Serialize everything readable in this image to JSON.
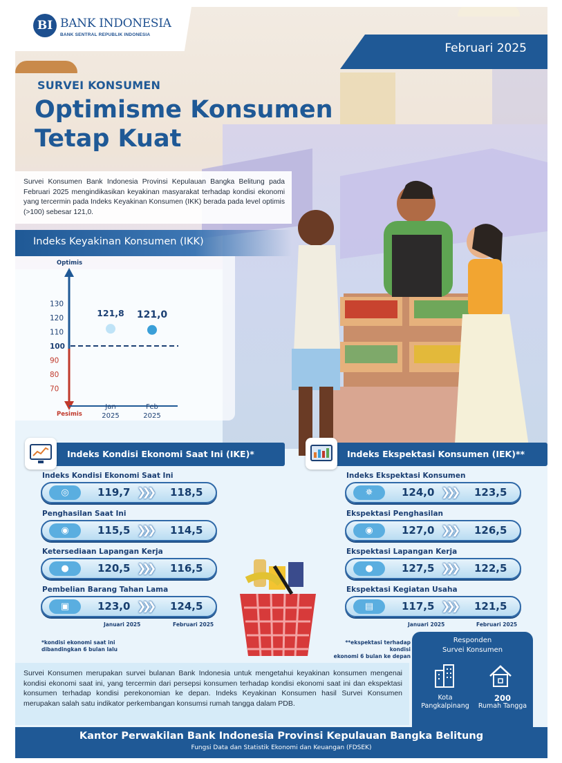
{
  "header": {
    "logo_title": "BANK INDONESIA",
    "logo_subtitle": "BANK SENTRAL REPUBLIK INDONESIA",
    "date": "Februari 2025"
  },
  "hero": {
    "kicker": "SURVEI KONSUMEN",
    "headline_line1": "Optimisme Konsumen",
    "headline_line2": "Tetap Kuat",
    "intro": "Survei Konsumen Bank Indonesia Provinsi Kepulauan Bangka Belitung pada Februari 2025 mengindikasikan keyakinan masyarakat terhadap kondisi ekonomi yang tercermin pada Indeks Keyakinan Konsumen (IKK) berada pada level optimis (>100) sebesar 121,0."
  },
  "ikk": {
    "title": "Indeks Keyakinan Konsumen (IKK)",
    "top_label": "Optimis",
    "bottom_label": "Pesimis"
  },
  "chart_data": {
    "type": "scatter",
    "title": "Indeks Keyakinan Konsumen (IKK)",
    "categories": [
      "Jan 2025",
      "Feb 2025"
    ],
    "x_tick_labels": [
      [
        "Jan",
        "2025"
      ],
      [
        "Feb",
        "2025"
      ]
    ],
    "values": [
      121.8,
      121.0
    ],
    "value_labels": [
      "121,8",
      "121,0"
    ],
    "y_ticks": [
      70,
      80,
      90,
      100,
      110,
      120,
      130
    ],
    "ylim": [
      65,
      135
    ],
    "threshold": 100,
    "colors": {
      "jan": "#bfe3f7",
      "feb": "#3a9fd8",
      "above": "#1b3f73",
      "below": "#c0392b"
    },
    "grid": false
  },
  "ike": {
    "title": "Indeks Kondisi Ekonomi Saat Ini (IKE)*",
    "items": [
      {
        "label": "Indeks Kondisi Ekonomi Saat Ini",
        "v1": "119,7",
        "v2": "118,5",
        "icon": "globe-money-icon"
      },
      {
        "label": "Penghasilan Saat Ini",
        "v1": "115,5",
        "v2": "114,5",
        "icon": "hand-money-icon"
      },
      {
        "label": "Ketersediaan Lapangan Kerja",
        "v1": "120,5",
        "v2": "116,5",
        "icon": "job-location-icon"
      },
      {
        "label": "Pembelian Barang Tahan Lama",
        "v1": "123,0",
        "v2": "124,5",
        "icon": "appliance-icon"
      }
    ],
    "period1": "Januari 2025",
    "period2": "Februari 2025",
    "note_line1": "*kondisi ekonomi saat ini",
    "note_line2": "dibandingkan 6 bulan lalu"
  },
  "iek": {
    "title": "Indeks Ekspektasi Konsumen (IEK)**",
    "items": [
      {
        "label": "Indeks Ekspektasi Konsumen",
        "v1": "124,0",
        "v2": "123,5",
        "icon": "idea-money-icon"
      },
      {
        "label": "Ekspektasi Penghasilan",
        "v1": "127,0",
        "v2": "126,5",
        "icon": "hand-money-icon"
      },
      {
        "label": "Ekspektasi Lapangan Kerja",
        "v1": "127,5",
        "v2": "122,5",
        "icon": "job-location-icon"
      },
      {
        "label": "Ekspektasi Kegiatan Usaha",
        "v1": "117,5",
        "v2": "121,5",
        "icon": "store-icon"
      }
    ],
    "period1": "Januari 2025",
    "period2": "Februari 2025",
    "note_line1": "**ekspektasi terhadap kondisi",
    "note_line2": "ekonomi 6 bulan ke depan"
  },
  "respondents": {
    "title_line1": "Responden",
    "title_line2": "Survei Konsumen",
    "city_line1": "Kota",
    "city_line2": "Pangkalpinang",
    "count": "200",
    "count_unit": "Rumah Tangga"
  },
  "footer": {
    "paragraph": "Survei Konsumen merupakan survei bulanan Bank Indonesia untuk mengetahui keyakinan konsumen mengenai kondisi ekonomi saat ini, yang tercermin dari persepsi konsumen terhadap kondisi ekonomi saat ini dan ekspektasi konsumen terhadap kondisi perekonomian ke depan. Indeks Keyakinan Konsumen hasil Survei Konsumen merupakan salah satu indikator perkembangan konsumsi rumah tangga dalam PDB.",
    "office": "Kantor Perwakilan Bank Indonesia Provinsi Kepulauan Bangka Belitung",
    "department": "Fungsi Data dan Statistik Ekonomi dan Keuangan (FDSEK)"
  },
  "colors": {
    "primary": "#1f5996",
    "light_blue": "#5aaee0",
    "pesimis_red": "#c0392b"
  }
}
